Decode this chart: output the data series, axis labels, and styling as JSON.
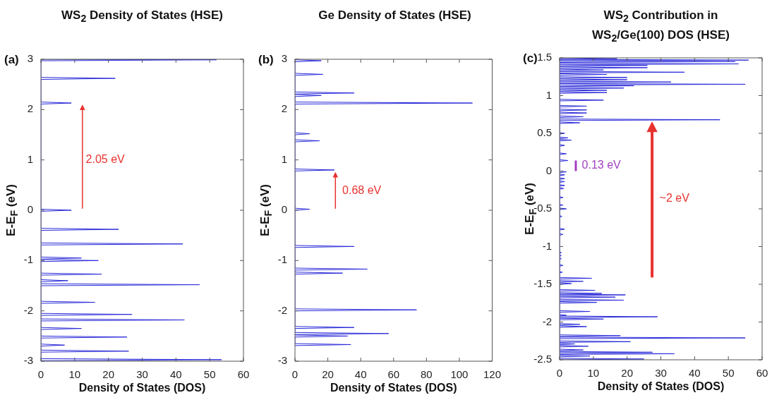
{
  "chart_data": [
    {
      "type": "line",
      "title": "WS$_{2}$ Density of States (HSE)",
      "xlabel": "Density of States (DOS)",
      "ylabel": "E-E$_{F}$ (eV)",
      "xlim": [
        0,
        60
      ],
      "ylim": [
        -3,
        3
      ],
      "xticks": [
        0,
        10,
        20,
        30,
        40,
        50,
        60
      ],
      "yticks": [
        -3,
        -2,
        -1,
        0,
        1,
        2,
        3
      ],
      "annotations": [
        "(a)",
        "2.05 eV"
      ],
      "series": [
        {
          "color": "#2b2bd9",
          "x": [
            0,
            53.5,
            0,
            0,
            26,
            0,
            0,
            7,
            0,
            0,
            25.5,
            0,
            0,
            12,
            0,
            0,
            42.5,
            0,
            0,
            27,
            0,
            0,
            16,
            0,
            0,
            47,
            0,
            0,
            8,
            0,
            0,
            18,
            0,
            0,
            17,
            0,
            0,
            12,
            0,
            0,
            42,
            0,
            0,
            23,
            0,
            0,
            9,
            0,
            0,
            9,
            0,
            0,
            22,
            0,
            0,
            52,
            0
          ],
          "values": [
            -2.99,
            -2.97,
            -2.95,
            -2.82,
            -2.8,
            -2.78,
            -2.7,
            -2.68,
            -2.66,
            -2.54,
            -2.52,
            -2.5,
            -2.37,
            -2.35,
            -2.33,
            -2.2,
            -2.18,
            -2.16,
            -2.09,
            -2.07,
            -2.05,
            -1.85,
            -1.83,
            -1.81,
            -1.5,
            -1.48,
            -1.46,
            -1.42,
            -1.4,
            -1.38,
            -1.29,
            -1.27,
            -1.25,
            -1.02,
            -1,
            -0.98,
            -0.97,
            -0.95,
            -0.93,
            -0.69,
            -0.67,
            -0.65,
            -0.4,
            -0.38,
            -0.36,
            -0.02,
            0,
            0.02,
            2.11,
            2.13,
            2.15,
            2.6,
            2.62,
            2.64,
            2.97,
            2.99,
            3
          ]
        }
      ]
    },
    {
      "type": "line",
      "title": "Ge Density of States (HSE)",
      "xlabel": "Density of States (DOS)",
      "ylabel": "E-E$_{F}$ (eV)",
      "xlim": [
        0,
        120
      ],
      "ylim": [
        -3,
        3
      ],
      "xticks": [
        0,
        20,
        40,
        60,
        80,
        100,
        120
      ],
      "yticks": [
        -3,
        -2,
        -1,
        0,
        1,
        2,
        3
      ],
      "annotations": [
        "(b)",
        "0.68 eV"
      ],
      "series": [
        {
          "color": "#2b2bd9",
          "x": [
            0,
            34,
            0,
            0,
            32,
            0,
            0,
            57,
            0,
            0,
            36,
            0,
            0,
            74,
            0,
            0,
            29,
            0,
            0,
            44,
            0,
            0,
            36,
            0,
            0,
            9,
            0,
            0,
            24,
            0,
            0,
            15,
            0,
            0,
            9,
            0,
            0,
            108,
            0,
            0,
            16,
            0,
            0,
            36,
            0,
            0,
            17,
            0,
            0,
            16,
            0
          ],
          "values": [
            -2.69,
            -2.67,
            -2.65,
            -2.52,
            -2.5,
            -2.48,
            -2.47,
            -2.45,
            -2.43,
            -2.35,
            -2.33,
            -2.31,
            -2,
            -1.98,
            -1.96,
            -1.27,
            -1.25,
            -1.23,
            -1.19,
            -1.17,
            -1.15,
            -0.74,
            -0.72,
            -0.7,
            0,
            0.02,
            0.04,
            0.78,
            0.8,
            0.82,
            1.36,
            1.38,
            1.4,
            1.5,
            1.52,
            1.54,
            2.11,
            2.13,
            2.15,
            2.26,
            2.28,
            2.3,
            2.31,
            2.33,
            2.35,
            2.68,
            2.7,
            2.72,
            2.95,
            2.97,
            2.99
          ]
        }
      ]
    },
    {
      "type": "line",
      "title": "WS$_{2}$ Contribution in WS$_{2}$/Ge(100) DOS (HSE)",
      "xlabel": "Density of States (DOS)",
      "ylabel": "E-E$_{F}$ (eV)",
      "xlim": [
        0,
        60
      ],
      "ylim": [
        -2.5,
        1.5
      ],
      "xticks": [
        0,
        10,
        20,
        30,
        40,
        50,
        60
      ],
      "yticks": [
        -2.5,
        -2,
        -1.5,
        -1,
        -0.5,
        0,
        0.5,
        1,
        1.5
      ],
      "annotations": [
        "(c)",
        "0.13 eV",
        "~2 eV"
      ],
      "series": [
        {
          "color": "#2b2bd9",
          "x": [
            0,
            25,
            0,
            0,
            9,
            0,
            0,
            34,
            0,
            0,
            27.5,
            0,
            0,
            7,
            0,
            0,
            8.5,
            0,
            0,
            4.5,
            0,
            0,
            21,
            0,
            0,
            55,
            0,
            0,
            18,
            0,
            0,
            8,
            0,
            0,
            6,
            0,
            0,
            13,
            0,
            0,
            29,
            0,
            0,
            2,
            0,
            0,
            9,
            0,
            0,
            11,
            0,
            0,
            19,
            0,
            0,
            16.5,
            0,
            0,
            19.5,
            0,
            0,
            12.5,
            0,
            0,
            10.5,
            0,
            0,
            3.5,
            0,
            0,
            7,
            0,
            0,
            9.5,
            0,
            0,
            0.8,
            0,
            0,
            1,
            0,
            0,
            0.5,
            0,
            0,
            0.5,
            0,
            0,
            0.5,
            0,
            0,
            1,
            0,
            0,
            1.5,
            0,
            0,
            0.7,
            0,
            0,
            2,
            0,
            0,
            1,
            0,
            0,
            1,
            0,
            0,
            1.2,
            0,
            0,
            1.5,
            0,
            0,
            1.5,
            0,
            0,
            1.5,
            0,
            0,
            1.5,
            0,
            0,
            2,
            0,
            0,
            2.5,
            0,
            0,
            2,
            0,
            0,
            1.5,
            0,
            0,
            3.5,
            0,
            0,
            2.5,
            0,
            0,
            1.5,
            0,
            0,
            6,
            0,
            0,
            47.5,
            0,
            0,
            7,
            0,
            0,
            8,
            0,
            0,
            8,
            0,
            0,
            8,
            0,
            0,
            13,
            0,
            0,
            14,
            0,
            0,
            14,
            0,
            0,
            19,
            0,
            0,
            22,
            0,
            0,
            55,
            0,
            0,
            33,
            0,
            0,
            20,
            0,
            0,
            20,
            0,
            0,
            14,
            0,
            0,
            37,
            0,
            0,
            13,
            0,
            0,
            26,
            0,
            0,
            26,
            0,
            0,
            53,
            0,
            0,
            52,
            0,
            0,
            56,
            0,
            0,
            17,
            0
          ],
          "values": [
            -2.5,
            -2.49,
            -2.48,
            -2.46,
            -2.45,
            -2.44,
            -2.43,
            -2.42,
            -2.41,
            -2.41,
            -2.4,
            -2.39,
            -2.38,
            -2.37,
            -2.36,
            -2.33,
            -2.32,
            -2.31,
            -2.3,
            -2.29,
            -2.28,
            -2.27,
            -2.26,
            -2.25,
            -2.22,
            -2.21,
            -2.2,
            -2.19,
            -2.18,
            -2.17,
            -2.07,
            -2.06,
            -2.05,
            -2.04,
            -2.03,
            -2.02,
            -1.97,
            -1.96,
            -1.95,
            -1.94,
            -1.93,
            -1.92,
            -1.92,
            -1.91,
            -1.9,
            -1.87,
            -1.86,
            -1.85,
            -1.75,
            -1.74,
            -1.73,
            -1.72,
            -1.71,
            -1.7,
            -1.68,
            -1.67,
            -1.66,
            -1.65,
            -1.64,
            -1.63,
            -1.63,
            -1.62,
            -1.61,
            -1.59,
            -1.58,
            -1.57,
            -1.5,
            -1.49,
            -1.48,
            -1.47,
            -1.46,
            -1.45,
            -1.43,
            -1.42,
            -1.41,
            -1.35,
            -1.34,
            -1.33,
            -1.26,
            -1.25,
            -1.24,
            -1.17,
            -1.16,
            -1.15,
            -1.13,
            -1.12,
            -1.11,
            -1.09,
            -1.08,
            -1.07,
            -0.85,
            -0.84,
            -0.83,
            -0.78,
            -0.77,
            -0.76,
            -0.61,
            -0.6,
            -0.59,
            -0.51,
            -0.5,
            -0.49,
            -0.46,
            -0.45,
            -0.44,
            -0.36,
            -0.35,
            -0.34,
            -0.24,
            -0.23,
            -0.22,
            -0.2,
            -0.19,
            -0.18,
            -0.15,
            -0.14,
            -0.13,
            -0.11,
            -0.1,
            -0.09,
            -0.06,
            -0.05,
            -0.04,
            -0.02,
            -0.01,
            0,
            0.13,
            0.14,
            0.15,
            0.22,
            0.23,
            0.24,
            0.33,
            0.34,
            0.35,
            0.4,
            0.41,
            0.42,
            0.43,
            0.44,
            0.45,
            0.49,
            0.5,
            0.51,
            0.63,
            0.64,
            0.65,
            0.67,
            0.68,
            0.69,
            0.71,
            0.72,
            0.73,
            0.76,
            0.77,
            0.78,
            0.8,
            0.81,
            0.82,
            0.85,
            0.86,
            0.87,
            0.93,
            0.94,
            0.95,
            1.03,
            1.04,
            1.05,
            1.06,
            1.07,
            1.08,
            1.09,
            1.1,
            1.11,
            1.12,
            1.13,
            1.14,
            1.14,
            1.15,
            1.16,
            1.17,
            1.18,
            1.19,
            1.2,
            1.21,
            1.22,
            1.23,
            1.24,
            1.25,
            1.27,
            1.28,
            1.29,
            1.3,
            1.31,
            1.32,
            1.33,
            1.34,
            1.35,
            1.36,
            1.37,
            1.38,
            1.39,
            1.4,
            1.41,
            1.41,
            1.42,
            1.43,
            1.44,
            1.45,
            1.46,
            1.46,
            1.47,
            1.48,
            1.48,
            1.49,
            1.5
          ]
        }
      ]
    }
  ]
}
